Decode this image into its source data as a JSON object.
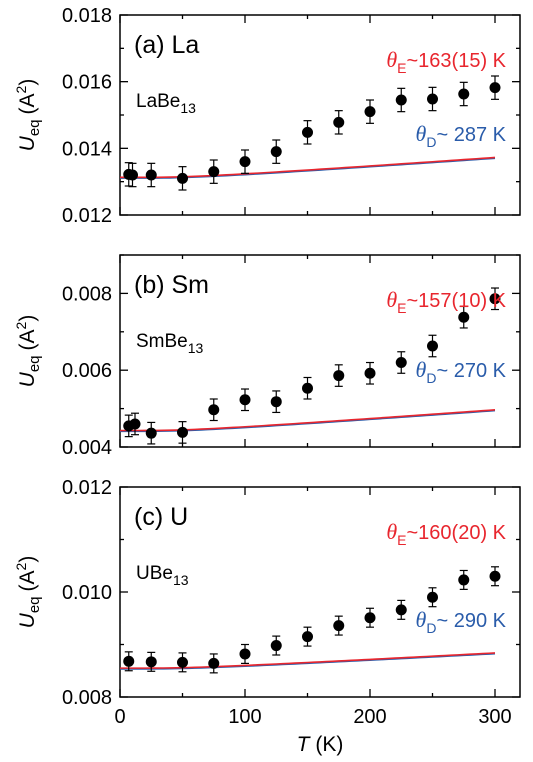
{
  "colors": {
    "einstein": "#e8262e",
    "debye": "#2a5caa",
    "points": "#000000",
    "axis": "#000000"
  },
  "chart_data": [
    {
      "type": "scatter",
      "panel_label": "(a) La",
      "compound": {
        "base": "LaBe",
        "sub": "13"
      },
      "ylabel": {
        "main": "U",
        "sub": "eq",
        "unit": "(A",
        "sup": "2",
        "close": ")"
      },
      "xlabel": "",
      "xlim": [
        0,
        320
      ],
      "ylim": [
        0.012,
        0.018
      ],
      "xticks": [
        0,
        100,
        200,
        300
      ],
      "xtick_labels": [],
      "yticks": [
        0.012,
        0.014,
        0.016,
        0.018
      ],
      "ytick_labels": [
        "0.012",
        "0.014",
        "0.016",
        "0.018"
      ],
      "x": [
        7,
        10,
        25,
        50,
        75,
        100,
        125,
        150,
        175,
        200,
        225,
        250,
        275,
        300
      ],
      "y": [
        0.01322,
        0.0132,
        0.0132,
        0.0131,
        0.0133,
        0.0136,
        0.0139,
        0.01448,
        0.01478,
        0.0151,
        0.01545,
        0.01548,
        0.01563,
        0.01582
      ],
      "yerr": 0.00035,
      "fits": [
        {
          "kind": "einstein",
          "symbol": "θ",
          "sub": "E",
          "value_text": "~163(15) K",
          "y0": 0.01313,
          "amp": 0.000215,
          "theta": 163
        },
        {
          "kind": "debye",
          "symbol": "θ",
          "sub": "D",
          "value_text": "~ 287 K",
          "y0": 0.01313,
          "amp": 0.000215,
          "theta": 163
        }
      ]
    },
    {
      "type": "scatter",
      "panel_label": "(b) Sm",
      "compound": {
        "base": "SmBe",
        "sub": "13"
      },
      "ylabel": {
        "main": "U",
        "sub": "eq",
        "unit": "(A",
        "sup": "2",
        "close": ")"
      },
      "xlabel": "",
      "xlim": [
        0,
        320
      ],
      "ylim": [
        0.004,
        0.009
      ],
      "xticks": [
        0,
        100,
        200,
        300
      ],
      "xtick_labels": [],
      "yticks": [
        0.004,
        0.006,
        0.008
      ],
      "ytick_labels": [
        "0.004",
        "0.006",
        "0.008"
      ],
      "x": [
        7,
        12,
        25,
        50,
        75,
        100,
        125,
        150,
        175,
        200,
        225,
        250,
        275,
        300
      ],
      "y": [
        0.00455,
        0.0046,
        0.00436,
        0.00438,
        0.00497,
        0.00523,
        0.00518,
        0.00553,
        0.00586,
        0.00592,
        0.0062,
        0.00663,
        0.00738,
        0.00786
      ],
      "yerr": 0.00028,
      "fits": [
        {
          "kind": "einstein",
          "symbol": "θ",
          "sub": "E",
          "value_text": "~157(10) K",
          "y0": 0.00443,
          "amp": 0.000185,
          "theta": 157
        },
        {
          "kind": "debye",
          "symbol": "θ",
          "sub": "D",
          "value_text": "~ 270 K",
          "y0": 0.00443,
          "amp": 0.000185,
          "theta": 157
        }
      ]
    },
    {
      "type": "scatter",
      "panel_label": "(c) U",
      "compound": {
        "base": "UBe",
        "sub": "13"
      },
      "ylabel": {
        "main": "U",
        "sub": "eq",
        "unit": "(A",
        "sup": "2",
        "close": ")"
      },
      "xlabel": {
        "main": "T",
        "unit": "(K)"
      },
      "xlim": [
        0,
        320
      ],
      "ylim": [
        0.008,
        0.012
      ],
      "xticks": [
        0,
        100,
        200,
        300
      ],
      "xtick_labels": [
        "0",
        "100",
        "200",
        "300"
      ],
      "yticks": [
        0.008,
        0.01,
        0.012
      ],
      "ytick_labels": [
        "0.008",
        "0.010",
        "0.012"
      ],
      "x": [
        7,
        25,
        50,
        75,
        100,
        125,
        150,
        175,
        200,
        225,
        250,
        275,
        300
      ],
      "y": [
        0.00868,
        0.00867,
        0.00866,
        0.00864,
        0.00882,
        0.00898,
        0.00915,
        0.00936,
        0.00951,
        0.00966,
        0.0099,
        0.01023,
        0.0103
      ],
      "yerr": 0.00018,
      "fits": [
        {
          "kind": "einstein",
          "symbol": "θ",
          "sub": "E",
          "value_text": "~160(20) K",
          "y0": 0.00855,
          "amp": 0.000102,
          "theta": 160
        },
        {
          "kind": "debye",
          "symbol": "θ",
          "sub": "D",
          "value_text": "~ 290 K",
          "y0": 0.00855,
          "amp": 0.000102,
          "theta": 160
        }
      ]
    }
  ]
}
